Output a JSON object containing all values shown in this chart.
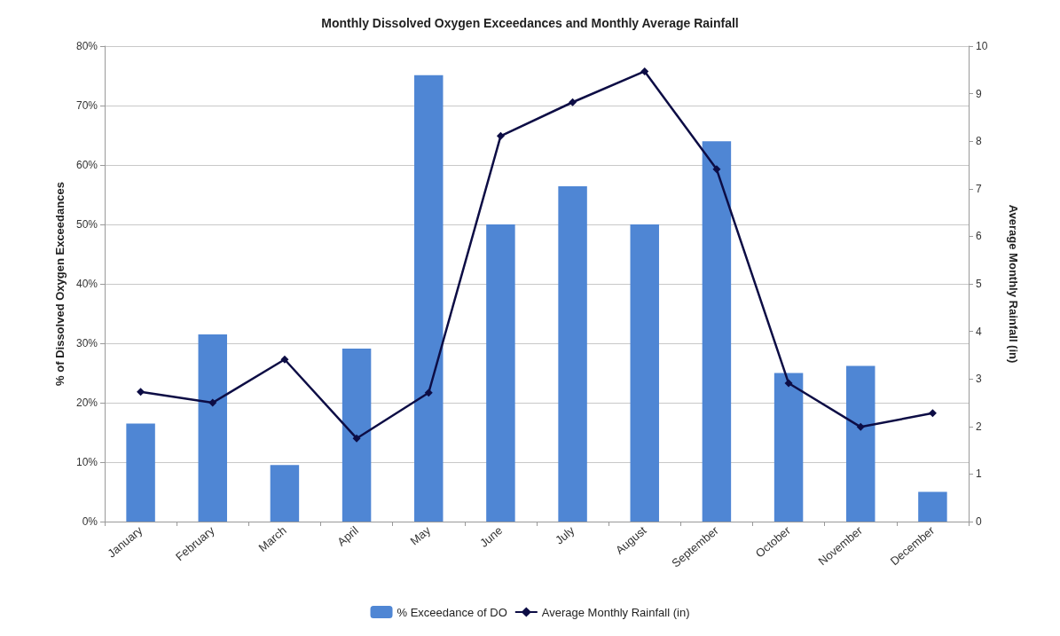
{
  "chart_data": {
    "type": "bar",
    "title": "Monthly Dissolved Oxygen Exceedances and Monthly Average Rainfall",
    "ylabel": "% of Dissolved Oxygen Exceedances",
    "y2label": "Average Monthly Rainfall (in)",
    "categories": [
      "January",
      "February",
      "March",
      "April",
      "May",
      "June",
      "July",
      "August",
      "September",
      "October",
      "November",
      "December"
    ],
    "series": [
      {
        "name": "% Exceedance of DO",
        "color": "#4f86d4",
        "values": [
          16.5,
          31.5,
          9.5,
          29.1,
          75.1,
          50,
          56.4,
          50,
          64,
          25,
          26.2,
          5
        ]
      },
      {
        "name": "Average Monthly Rainfall (in)",
        "type": "line",
        "axis": "y2",
        "color": "#0d0d45",
        "marker": "diamond",
        "values": [
          2.73,
          2.5,
          3.41,
          1.75,
          2.71,
          8.11,
          8.82,
          9.47,
          7.41,
          2.91,
          1.99,
          2.28
        ]
      }
    ],
    "ylim": [
      0,
      80
    ],
    "yticks": [
      {
        "value": 0,
        "label": "0%"
      },
      {
        "value": 10,
        "label": "10%"
      },
      {
        "value": 20,
        "label": "20%"
      },
      {
        "value": 30,
        "label": "30%"
      },
      {
        "value": 40,
        "label": "40%"
      },
      {
        "value": 50,
        "label": "50%"
      },
      {
        "value": 60,
        "label": "60%"
      },
      {
        "value": 70,
        "label": "70%"
      },
      {
        "value": 80,
        "label": "80%"
      }
    ],
    "y2lim": [
      0,
      10
    ],
    "y2ticks": [
      0,
      1,
      2,
      3,
      4,
      5,
      6,
      7,
      8,
      9,
      10
    ],
    "grid": "y",
    "legend": "bottom"
  }
}
